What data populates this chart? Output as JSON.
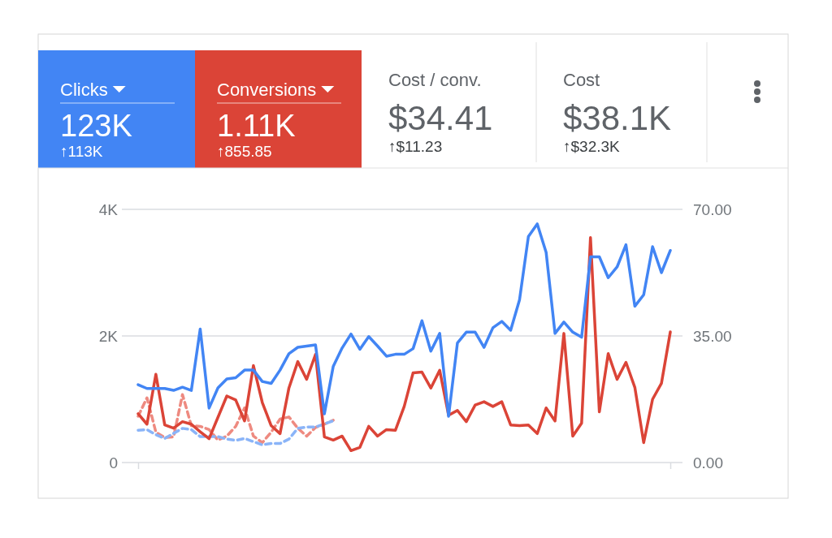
{
  "chart_data": {
    "type": "line",
    "categories": [
      null,
      null,
      null,
      null,
      null,
      null,
      null,
      null,
      null,
      null,
      null,
      null,
      null,
      null,
      null,
      null,
      null,
      null,
      null,
      null,
      null,
      null,
      null,
      null,
      null,
      null,
      null,
      null,
      null,
      null,
      null,
      null,
      null,
      null,
      null,
      null,
      null,
      null,
      null,
      null,
      null,
      null,
      null,
      null,
      null,
      null,
      null,
      null,
      null,
      null,
      null,
      null,
      null,
      null,
      null,
      null,
      null,
      null,
      null,
      null,
      null
    ],
    "series": [
      {
        "name": "Clicks",
        "color": "#4285f4",
        "line_style": "solid",
        "values": [
          1230,
          1170,
          1170,
          1170,
          1140,
          1190,
          1140,
          2110,
          860,
          1180,
          1320,
          1340,
          1460,
          1460,
          1280,
          1250,
          1460,
          1720,
          1820,
          1840,
          1860,
          770,
          1520,
          1810,
          2030,
          1790,
          1990,
          1840,
          1680,
          1710,
          1710,
          1800,
          2240,
          1760,
          2040,
          730,
          1890,
          2060,
          2060,
          1820,
          2130,
          2230,
          2090,
          2570,
          3570,
          3770,
          3320,
          2040,
          2220,
          2060,
          1980,
          3250,
          3250,
          2920,
          3090,
          3440,
          2470,
          2650,
          3410,
          3000,
          3350
        ]
      },
      {
        "name": "Conversions",
        "color": "#db4437",
        "line_style": "solid",
        "axis": "y2",
        "values": [
          13.5,
          10.6,
          24.4,
          10.4,
          9.5,
          11.3,
          10.6,
          8.5,
          6.6,
          12.5,
          18.4,
          17.3,
          11.5,
          26.8,
          16.6,
          10.2,
          8.0,
          20.6,
          27.9,
          23.0,
          29.9,
          7.1,
          6.2,
          7.3,
          3.3,
          4.2,
          10.0,
          7.3,
          9.1,
          8.9,
          15.5,
          24.8,
          25.0,
          20.6,
          25.5,
          13.1,
          14.4,
          11.3,
          15.9,
          16.8,
          15.5,
          16.8,
          10.4,
          10.2,
          10.4,
          8.0,
          15.1,
          11.5,
          35.7,
          7.3,
          10.9,
          62.2,
          14.0,
          30.1,
          23.0,
          27.7,
          20.8,
          5.5,
          17.5,
          21.9,
          36.1
        ]
      },
      {
        "color": "#8ab4f8",
        "line_style": "dashed",
        "values": [
          510,
          520,
          440,
          380,
          460,
          540,
          520,
          410,
          410,
          410,
          370,
          350,
          380,
          330,
          280,
          300,
          300,
          370,
          540,
          560,
          560,
          610,
          660,
          null,
          null,
          null,
          null,
          null,
          null,
          null,
          null,
          null,
          null,
          null,
          null,
          null,
          null,
          null,
          null,
          null,
          null,
          null,
          null,
          null,
          null,
          null,
          null,
          null,
          null,
          null,
          null,
          null,
          null,
          null,
          null,
          null,
          null,
          null,
          null,
          null,
          null
        ]
      },
      {
        "color": "#ee8a80",
        "line_style": "dashed",
        "axis": "y2",
        "values": [
          12.8,
          17.9,
          8.4,
          6.9,
          7.1,
          18.8,
          10.2,
          10.0,
          9.1,
          6.2,
          7.3,
          10.0,
          15.1,
          7.3,
          5.5,
          8.4,
          12.0,
          12.6,
          9.5,
          7.3,
          9.7,
          10.6,
          11.7,
          null,
          null,
          null,
          null,
          null,
          null,
          null,
          null,
          null,
          null,
          null,
          null,
          null,
          null,
          null,
          null,
          null,
          null,
          null,
          null,
          null,
          null,
          null,
          null,
          null,
          null,
          null,
          null,
          null,
          null,
          null,
          null,
          null,
          null,
          null,
          null,
          null,
          null
        ]
      }
    ],
    "ylim": [
      0,
      4000
    ],
    "yticks": [
      0,
      {
        "value": 2000,
        "label": "2K"
      },
      {
        "value": 4000,
        "label": "4K"
      }
    ],
    "y2lim": [
      0,
      70
    ],
    "y2ticks": [
      {
        "value": 0,
        "label": "0.00"
      },
      {
        "value": 35,
        "label": "35.00"
      },
      {
        "value": 70,
        "label": "70.00"
      }
    ],
    "grid": "y",
    "legend": "top",
    "marker": "none",
    "annotations": [
      "123K",
      "↑113K",
      "1.11K",
      "↑855.85",
      "Cost / conv.",
      "$34.41",
      "↑$11.23",
      "Cost",
      "$38.1K",
      "↑$32.3K"
    ]
  }
}
